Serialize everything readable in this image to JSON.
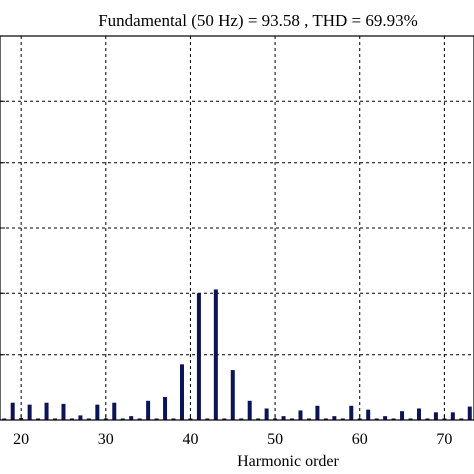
{
  "chart_data": {
    "type": "bar",
    "title": "Fundamental (50 Hz) = 93.58 , THD = 69.93%",
    "xlabel": "Harmonic order",
    "ylabel": "",
    "xlim": [
      17.5,
      73.5
    ],
    "ylim": [
      0,
      1
    ],
    "x_ticks": [
      20,
      30,
      40,
      50,
      60,
      70
    ],
    "x_tick_labels": [
      "20",
      "30",
      "40",
      "50",
      "60",
      "70"
    ],
    "y_gridlines": [
      1,
      0.83,
      0.67,
      0.5,
      0.33,
      0.17
    ],
    "grid": true,
    "bar_color": "#0b1455",
    "x": [
      17,
      18,
      19,
      20,
      21,
      22,
      23,
      24,
      25,
      26,
      27,
      28,
      29,
      30,
      31,
      32,
      33,
      34,
      35,
      36,
      37,
      38,
      39,
      40,
      41,
      42,
      43,
      44,
      45,
      46,
      47,
      48,
      49,
      50,
      51,
      52,
      53,
      54,
      55,
      56,
      57,
      58,
      59,
      60,
      61,
      62,
      63,
      64,
      65,
      66,
      67,
      68,
      69,
      70,
      71,
      72,
      73
    ],
    "values": [
      0.047,
      0.004,
      0.045,
      0.005,
      0.04,
      0.004,
      0.045,
      0.004,
      0.042,
      0.004,
      0.012,
      0.004,
      0.04,
      0.004,
      0.045,
      0.004,
      0.01,
      0.004,
      0.05,
      0.004,
      0.06,
      0.004,
      0.145,
      0.004,
      0.33,
      0.004,
      0.34,
      0.004,
      0.13,
      0.004,
      0.05,
      0.004,
      0.03,
      0.004,
      0.01,
      0.004,
      0.025,
      0.004,
      0.037,
      0.004,
      0.01,
      0.004,
      0.037,
      0.004,
      0.027,
      0.004,
      0.01,
      0.004,
      0.023,
      0.004,
      0.03,
      0.004,
      0.02,
      0.004,
      0.02,
      0.004,
      0.035
    ]
  }
}
